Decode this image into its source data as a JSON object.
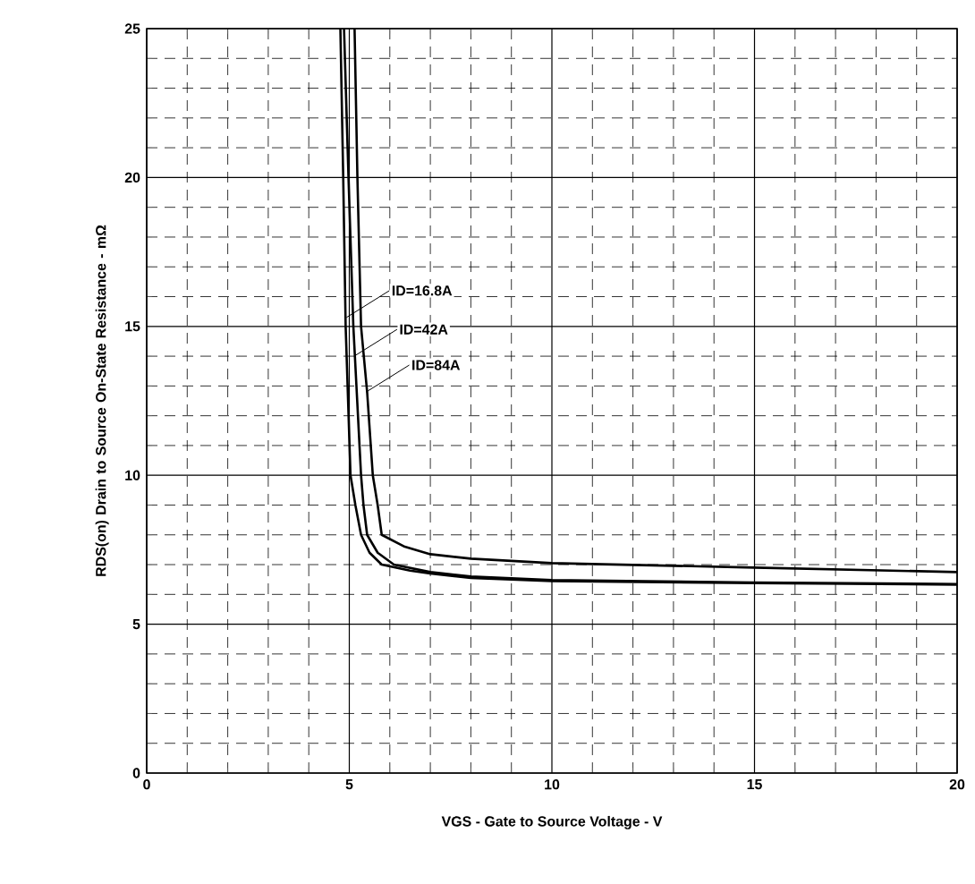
{
  "chart_data": {
    "type": "line",
    "xlabel": "VGS - Gate to Source Voltage - V",
    "ylabel": "RDS(on) Drain to Source On-State Resistance - mΩ",
    "xlim": [
      0,
      20
    ],
    "ylim": [
      0,
      25
    ],
    "xticks": [
      0,
      5,
      10,
      15,
      20
    ],
    "yticks": [
      0,
      5,
      10,
      15,
      20,
      25
    ],
    "grid": true,
    "marker": "none",
    "line_style": "solid",
    "series": [
      {
        "color": "#000000",
        "x": [
          4.78,
          4.85,
          4.91,
          5.03,
          5.15,
          5.29,
          5.5,
          5.8,
          6.5,
          7,
          8,
          10,
          15,
          20
        ],
        "values": [
          25,
          20,
          15,
          10,
          9,
          8,
          7.4,
          7.0,
          6.8,
          6.7,
          6.55,
          6.45,
          6.38,
          6.33
        ]
      },
      {
        "color": "#000000",
        "x": [
          4.87,
          4.98,
          5.1,
          5.29,
          5.35,
          5.44,
          5.7,
          6.1,
          7,
          8,
          10,
          15,
          20
        ],
        "values": [
          25,
          20,
          15,
          10,
          9,
          8,
          7.4,
          7.0,
          6.75,
          6.6,
          6.48,
          6.4,
          6.35
        ]
      },
      {
        "color": "#000000",
        "x": [
          5.13,
          5.2,
          5.29,
          5.44,
          5.58,
          5.7,
          5.8,
          6.37,
          7,
          8,
          10,
          15,
          20
        ],
        "values": [
          25,
          20,
          15,
          12.8,
          10,
          9,
          8,
          7.6,
          7.35,
          7.2,
          7.05,
          6.9,
          6.75
        ]
      }
    ],
    "annotations": [
      {
        "text": "ID=16.8A",
        "x": 4.93,
        "y": 15.3
      },
      {
        "text": "ID=42A",
        "x": 5.12,
        "y": 14.0
      },
      {
        "text": "ID=84A",
        "x": 5.42,
        "y": 12.8
      }
    ]
  }
}
